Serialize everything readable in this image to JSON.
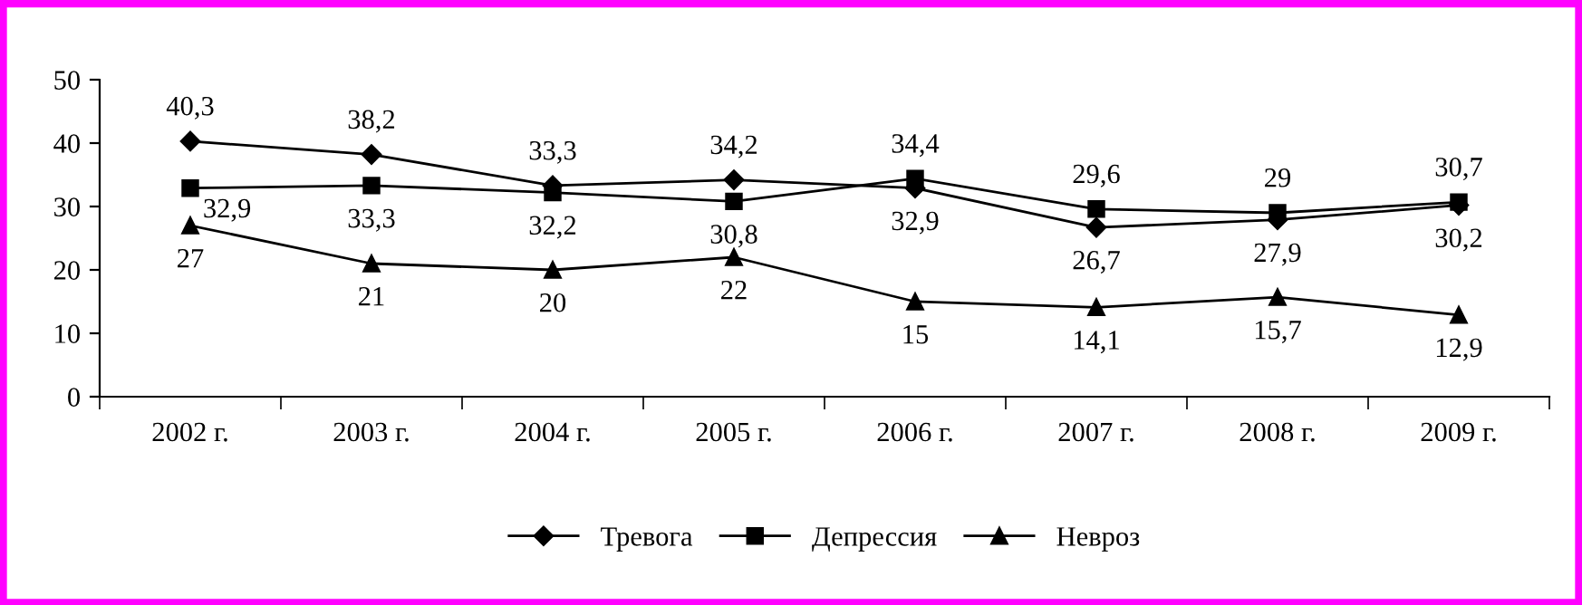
{
  "chart_data": {
    "type": "line",
    "categories": [
      "2002 г.",
      "2003 г.",
      "2004 г.",
      "2005 г.",
      "2006 г.",
      "2007 г.",
      "2008 г.",
      "2009 г."
    ],
    "series": [
      {
        "name": "Тревога",
        "color": "#000000",
        "marker": "diamond",
        "values": [
          40.3,
          38.2,
          33.3,
          34.2,
          32.9,
          26.7,
          27.9,
          30.2
        ],
        "value_labels": [
          "40,3",
          "38,2",
          "33,3",
          "34,2",
          "32,9",
          "26,7",
          "27,9",
          "30,2"
        ]
      },
      {
        "name": "Депрессия",
        "color": "#000000",
        "marker": "square",
        "values": [
          32.9,
          33.3,
          32.2,
          30.8,
          34.4,
          29.6,
          29,
          30.7
        ],
        "value_labels": [
          "32,9",
          "33,3",
          "32,2",
          "30,8",
          "34,4",
          "29,6",
          "29",
          "30,7"
        ]
      },
      {
        "name": "Невроз",
        "color": "#000000",
        "marker": "triangle",
        "values": [
          27,
          21,
          20,
          22,
          15,
          14.1,
          15.7,
          12.9
        ],
        "value_labels": [
          "27",
          "21",
          "20",
          "22",
          "15",
          "14,1",
          "15,7",
          "12,9"
        ]
      }
    ],
    "ylim": [
      0,
      50
    ],
    "yticks": [
      0,
      10,
      20,
      30,
      40,
      50
    ],
    "grid": false,
    "legend": "bottom",
    "line_style": "solid"
  }
}
